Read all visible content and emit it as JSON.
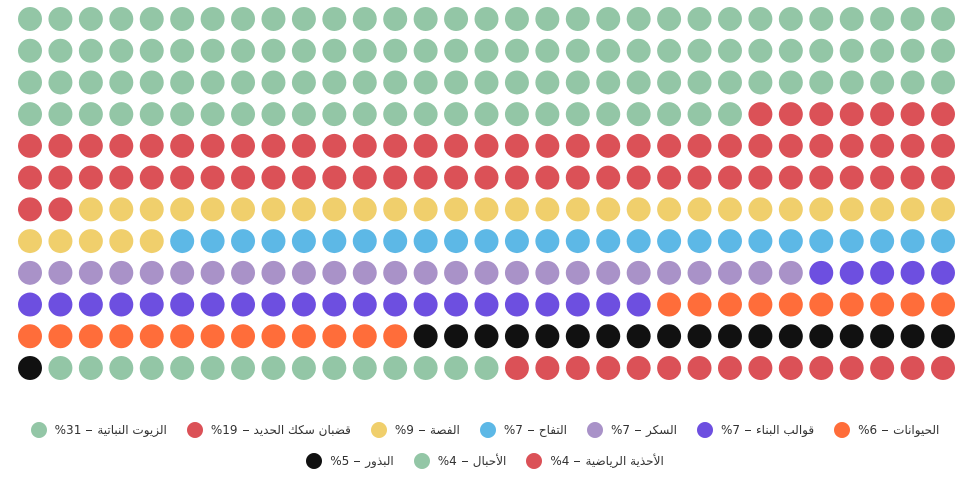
{
  "chart_data": {
    "type": "waffle",
    "series": [
      {
        "name": "الزيوت النباتية",
        "color": "#93c6a6",
        "values": [
          31
        ],
        "value_labels": [
          "%31"
        ]
      },
      {
        "name": "قضبان سكك الحديد",
        "color": "#db5157",
        "values": [
          19
        ],
        "value_labels": [
          "%19"
        ]
      },
      {
        "name": "الفصة",
        "color": "#f0cf6c",
        "values": [
          9
        ],
        "value_labels": [
          "%9"
        ]
      },
      {
        "name": "التفاح",
        "color": "#5db8e6",
        "values": [
          7
        ],
        "value_labels": [
          "%7"
        ]
      },
      {
        "name": "السكر",
        "color": "#a992c8",
        "values": [
          7
        ],
        "value_labels": [
          "%7"
        ]
      },
      {
        "name": "قوالب البناء",
        "color": "#6d4fe0",
        "values": [
          7
        ],
        "value_labels": [
          "%7"
        ]
      },
      {
        "name": "الحيوانات",
        "color": "#ff6d3a",
        "values": [
          6
        ],
        "value_labels": [
          "%6"
        ]
      },
      {
        "name": "البذور",
        "color": "#111111",
        "values": [
          5
        ],
        "value_labels": [
          "%5"
        ]
      },
      {
        "name": "الأحبال",
        "color": "#93c6a6",
        "values": [
          4
        ],
        "value_labels": [
          "%4"
        ]
      },
      {
        "name": "الأحذية الرياضية",
        "color": "#db5157",
        "values": [
          4
        ],
        "value_labels": [
          "%4"
        ]
      }
    ]
  }
}
